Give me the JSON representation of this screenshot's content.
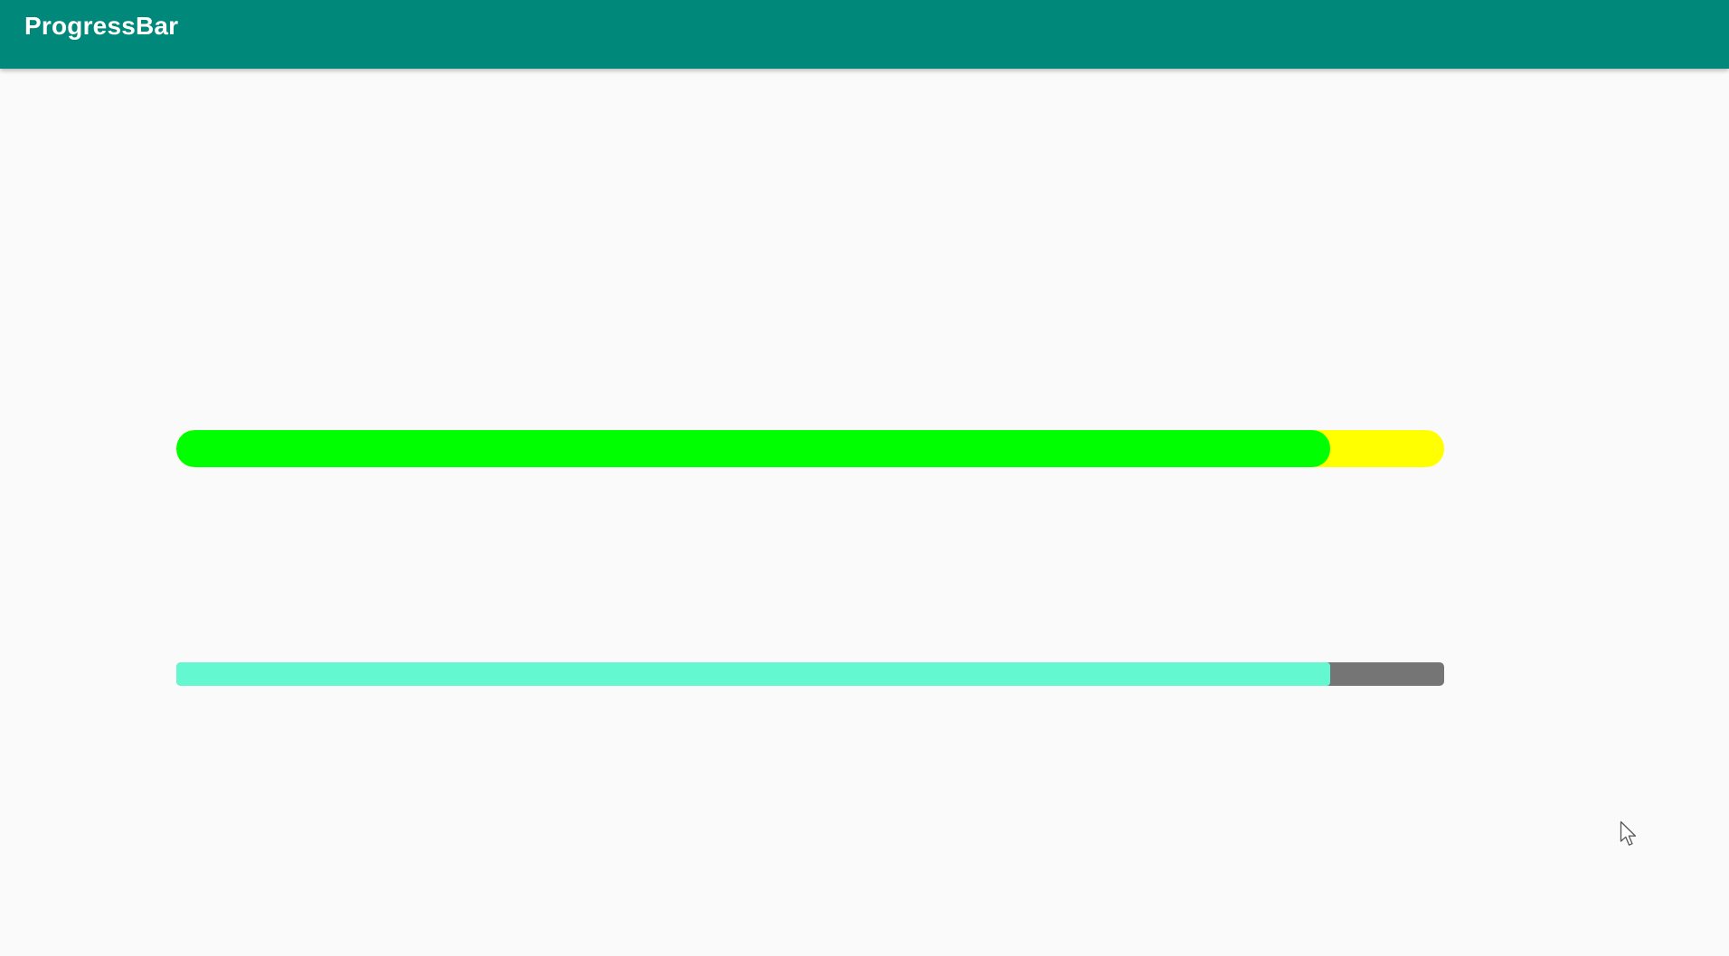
{
  "app_bar": {
    "title": "ProgressBar",
    "color": "#00897b"
  },
  "progress_bars": [
    {
      "progress_fraction": 0.91,
      "fill_color": "#00ff00",
      "track_color": "#ffff00"
    },
    {
      "progress_fraction": 0.91,
      "fill_color": "#64f8d0",
      "track_color": "#757575"
    }
  ],
  "icons": {
    "cursor": "mouse-pointer-icon"
  }
}
